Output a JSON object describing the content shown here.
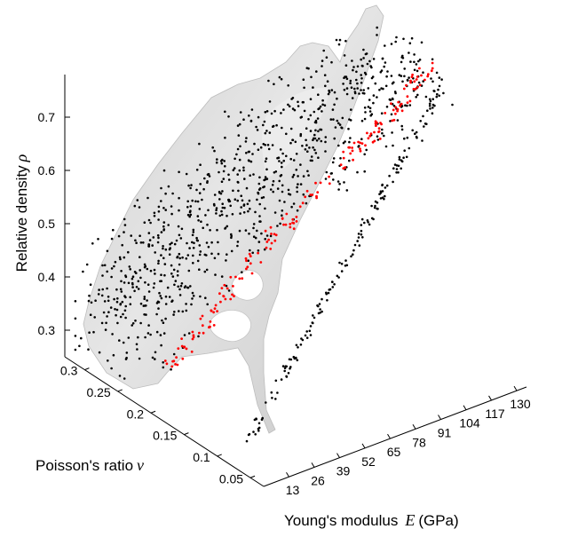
{
  "chart_data": {
    "type": "scatter",
    "title": "",
    "axes": {
      "x": {
        "label": "Young's modulus",
        "symbol": "E",
        "unit": "(GPa)",
        "ticks": [
          "13",
          "26",
          "39",
          "52",
          "65",
          "78",
          "91",
          "104",
          "117",
          "130"
        ],
        "range": [
          0,
          135
        ]
      },
      "y": {
        "label": "Poisson's ratio",
        "symbol": "ν",
        "ticks": [
          "0.05",
          "0.1",
          "0.15",
          "0.2",
          "0.25",
          "0.3"
        ],
        "range": [
          0.03,
          0.33
        ]
      },
      "z": {
        "label": "Relative density",
        "symbol": "ρ",
        "ticks": [
          "0.3",
          "0.4",
          "0.5",
          "0.6",
          "0.7"
        ],
        "range": [
          0.25,
          0.78
        ]
      }
    },
    "grid": false,
    "legend": "none",
    "surface": {
      "color": "#d9d9d9",
      "description": "shaded grey 3-D surface enclosing the point cloud"
    },
    "series": [
      {
        "color": "#000000",
        "points_description": "dense cloud of black points spread over the surface, including a nearly linear chain along the front edge",
        "trend": [
          {
            "E": 10,
            "nu": 0.27,
            "rho": 0.3
          },
          {
            "E": 30,
            "nu": 0.24,
            "rho": 0.45
          },
          {
            "E": 55,
            "nu": 0.2,
            "rho": 0.58
          },
          {
            "E": 90,
            "nu": 0.17,
            "rho": 0.68
          },
          {
            "E": 125,
            "nu": 0.15,
            "rho": 0.76
          }
        ]
      },
      {
        "color": "#ff0000",
        "points_description": "red points forming a narrow band along a ridge of the surface",
        "trend": [
          {
            "E": 20,
            "nu": 0.23,
            "rho": 0.28
          },
          {
            "E": 45,
            "nu": 0.21,
            "rho": 0.42
          },
          {
            "E": 75,
            "nu": 0.19,
            "rho": 0.55
          },
          {
            "E": 105,
            "nu": 0.17,
            "rho": 0.66
          },
          {
            "E": 130,
            "nu": 0.16,
            "rho": 0.76
          }
        ]
      }
    ]
  }
}
